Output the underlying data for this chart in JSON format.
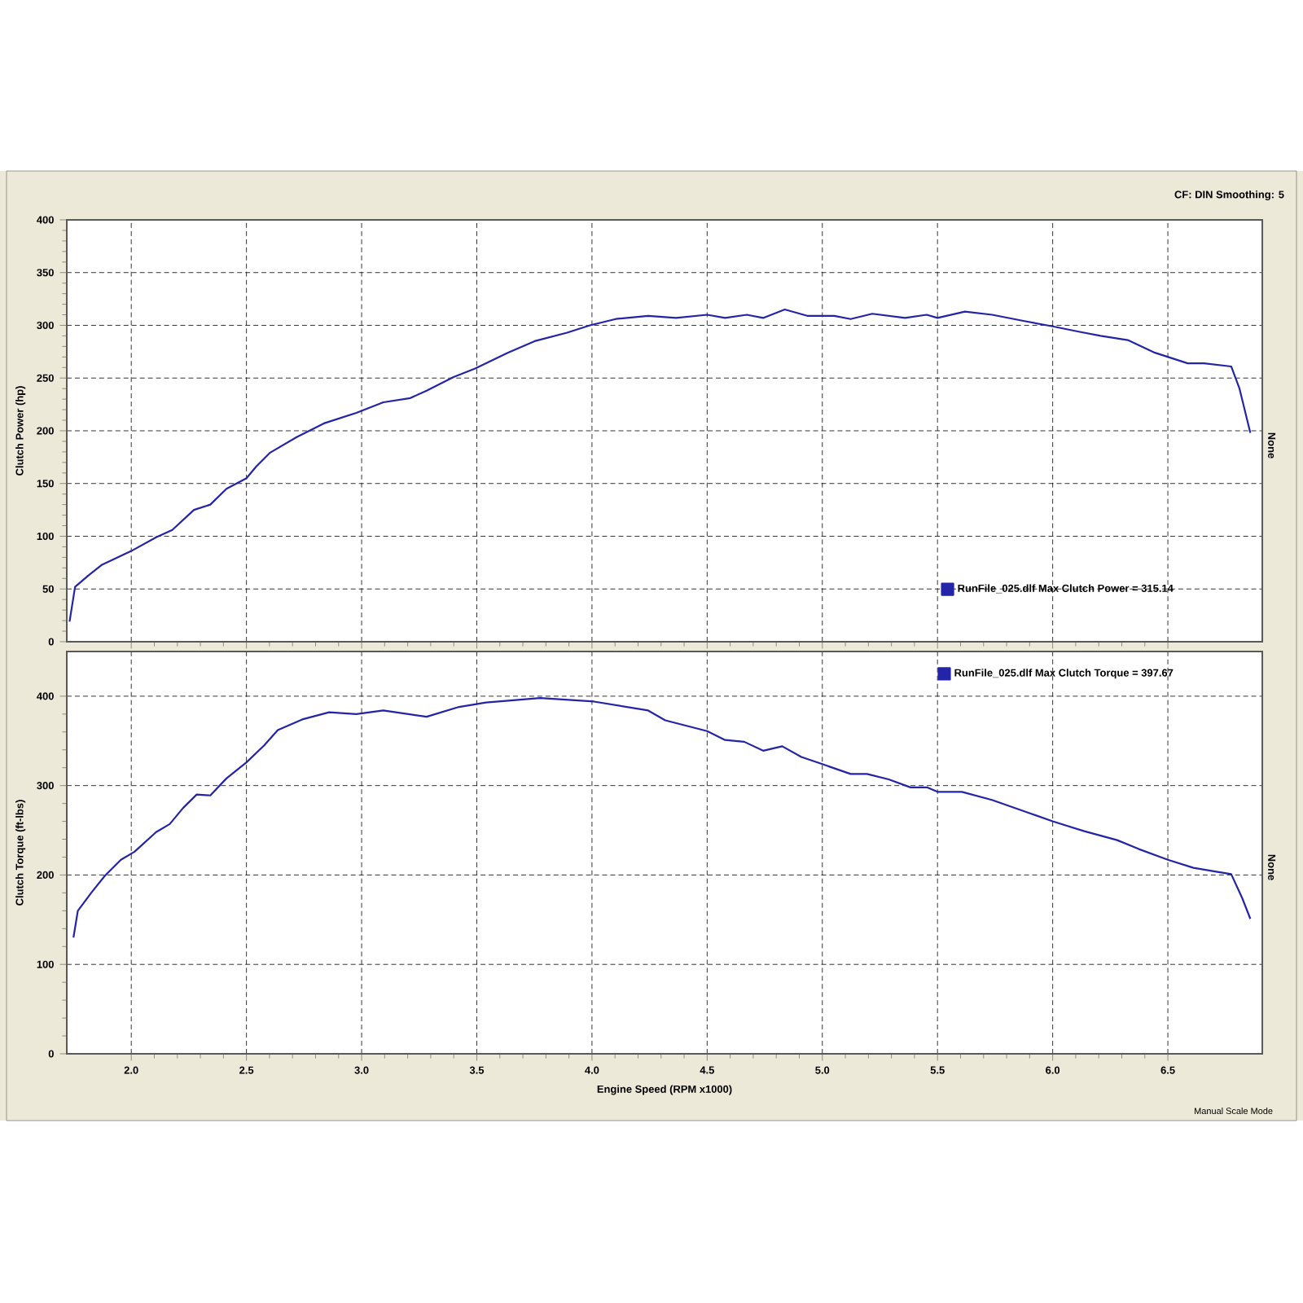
{
  "chart_data": [
    {
      "type": "line",
      "ylabel": "Clutch Power (hp)",
      "y2label": "None",
      "annotations": [
        "CF: DIN  Smoothing: 5"
      ],
      "xlim": [
        1.72,
        6.91
      ],
      "ylim": [
        0,
        400
      ],
      "xticks": [
        {
          "value": 2.0,
          "label": null
        },
        {
          "value": 2.5,
          "label": null
        },
        {
          "value": 3.0,
          "label": null
        },
        {
          "value": 3.5,
          "label": null
        },
        {
          "value": 4.0,
          "label": null
        },
        {
          "value": 4.5,
          "label": null
        },
        {
          "value": 5.0,
          "label": null
        },
        {
          "value": 5.5,
          "label": null
        },
        {
          "value": 6.0,
          "label": null
        },
        {
          "value": 6.5,
          "label": null
        }
      ],
      "yticks": [
        0,
        50,
        100,
        150,
        200,
        250,
        300,
        350,
        400
      ],
      "tick_labels": "y",
      "grid": true,
      "legend": "bottom right",
      "marker": "none",
      "line_style": "solid",
      "series": [
        {
          "name": "RunFile_025.dlf Max Clutch Power = 315.14",
          "color": "#2424a8",
          "x": [
            1.732,
            1.756,
            1.815,
            1.873,
            2.0,
            2.108,
            2.178,
            2.272,
            2.343,
            2.413,
            2.5,
            2.542,
            2.601,
            2.718,
            2.836,
            2.977,
            3.094,
            3.211,
            3.282,
            3.399,
            3.493,
            3.634,
            3.751,
            3.892,
            3.991,
            4.103,
            4.244,
            4.365,
            4.5,
            4.578,
            4.672,
            4.743,
            4.837,
            4.934,
            5.052,
            5.123,
            5.217,
            5.359,
            5.453,
            5.5,
            5.619,
            5.737,
            5.877,
            6.0,
            6.113,
            6.208,
            6.326,
            6.444,
            6.586,
            6.657,
            6.775,
            6.811,
            6.858
          ],
          "values": [
            19,
            52,
            63,
            73,
            86,
            99,
            106,
            125,
            130,
            145,
            155,
            166,
            179,
            194,
            207,
            217,
            227,
            231,
            238,
            251,
            259,
            274,
            285,
            293,
            300,
            306,
            309,
            307,
            310,
            307,
            310,
            307,
            315,
            309,
            309,
            306,
            311,
            307,
            310,
            307,
            313,
            310,
            304,
            299,
            294,
            290,
            286,
            274,
            264,
            264,
            261,
            240,
            198
          ]
        }
      ]
    },
    {
      "type": "line",
      "xlabel": "Engine Speed (RPM x1000)",
      "ylabel": "Clutch Torque (ft-lbs)",
      "y2label": "None",
      "annotations": [
        "Manual Scale Mode"
      ],
      "xlim": [
        1.72,
        6.91
      ],
      "ylim": [
        0,
        450
      ],
      "xticks": [
        {
          "value": 2.0,
          "label": "2.0"
        },
        {
          "value": 2.5,
          "label": "2.5"
        },
        {
          "value": 3.0,
          "label": "3.0"
        },
        {
          "value": 3.5,
          "label": "3.5"
        },
        {
          "value": 4.0,
          "label": "4.0"
        },
        {
          "value": 4.5,
          "label": "4.5"
        },
        {
          "value": 5.0,
          "label": "5.0"
        },
        {
          "value": 5.5,
          "label": "5.5"
        },
        {
          "value": 6.0,
          "label": "6.0"
        },
        {
          "value": 6.5,
          "label": "6.5"
        }
      ],
      "yticks": [
        0,
        100,
        200,
        300,
        400
      ],
      "grid": true,
      "legend": "top right",
      "marker": "none",
      "line_style": "solid",
      "series": [
        {
          "name": "RunFile_025.dlf Max Clutch Torque = 397.67",
          "color": "#2424a8",
          "x": [
            1.749,
            1.768,
            1.826,
            1.885,
            1.955,
            2.014,
            2.108,
            2.167,
            2.225,
            2.284,
            2.343,
            2.413,
            2.5,
            2.577,
            2.636,
            2.742,
            2.859,
            2.977,
            3.094,
            3.282,
            3.423,
            3.54,
            3.775,
            4.009,
            4.244,
            4.318,
            4.5,
            4.578,
            4.661,
            4.743,
            4.826,
            4.909,
            5.0,
            5.123,
            5.194,
            5.288,
            5.383,
            5.454,
            5.5,
            5.606,
            5.736,
            5.902,
            6.0,
            6.137,
            6.28,
            6.374,
            6.5,
            6.611,
            6.705,
            6.775,
            6.823,
            6.858
          ],
          "values": [
            130,
            160,
            180,
            199,
            217,
            226,
            248,
            257,
            275,
            290,
            289,
            308,
            326,
            345,
            362,
            374,
            382,
            380,
            384,
            377,
            388,
            393,
            398,
            394,
            384,
            373,
            361,
            351,
            349,
            339,
            344,
            332,
            324,
            313,
            313,
            307,
            298,
            298,
            293,
            293,
            284,
            269,
            260,
            249,
            239,
            229,
            217,
            208,
            204,
            201,
            174,
            151
          ]
        }
      ]
    }
  ]
}
